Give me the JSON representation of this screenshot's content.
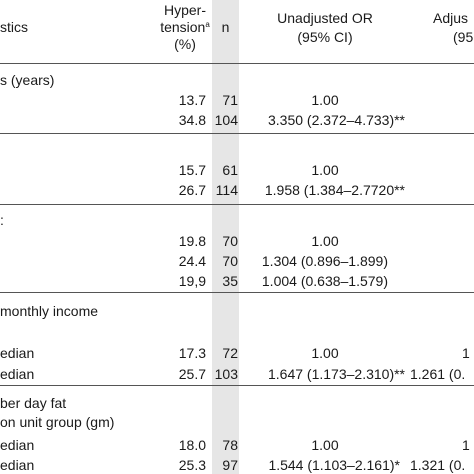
{
  "header": {
    "characteristics": "stics",
    "hypertension_line1": "Hyper-",
    "hypertension_line2": "tension",
    "hypertension_sup": "a",
    "hypertension_unit": "(%)",
    "n": "n",
    "unadjusted_line1": "Unadjusted OR",
    "unadjusted_line2": "(95% CI)",
    "adjusted_line1": "Adjus",
    "adjusted_line2": "(95"
  },
  "sections": [
    {
      "title": "s (years)",
      "rows": [
        {
          "label": "",
          "pct": "13.7",
          "n": "71",
          "uor": "1.00",
          "aor": ""
        },
        {
          "label": "",
          "pct": "34.8",
          "n": "104",
          "uor": "3.350 (2.372–4.733)**",
          "aor": ""
        }
      ]
    },
    {
      "title": "",
      "rows": [
        {
          "label": "",
          "pct": "15.7",
          "n": "61",
          "uor": "1.00",
          "aor": ""
        },
        {
          "label": "",
          "pct": "26.7",
          "n": "114",
          "uor": "1.958 (1.384–2.7720**",
          "aor": ""
        }
      ]
    },
    {
      "title": ":",
      "rows": [
        {
          "label": "",
          "pct": "19.8",
          "n": "70",
          "uor": "1.00",
          "aor": ""
        },
        {
          "label": "",
          "pct": "24.4",
          "n": "70",
          "uor": "1.304 (0.896–1.899)",
          "aor": ""
        },
        {
          "label": "",
          "pct": "19,9",
          "n": "35",
          "uor": "1.004 (0.638–1.579)",
          "aor": ""
        }
      ]
    },
    {
      "title": "monthly income",
      "rows": [
        {
          "label": "edian",
          "pct": "17.3",
          "n": "72",
          "uor": "1.00",
          "aor": "1"
        },
        {
          "label": "edian",
          "pct": "25.7",
          "n": "103",
          "uor": "1.647 (1.173–2.310)**",
          "aor": "1.261 (0."
        }
      ]
    },
    {
      "title": "ber day fat",
      "title2": "on unit group (gm)",
      "rows": [
        {
          "label": "edian",
          "pct": "18.0",
          "n": "78",
          "uor": "1.00",
          "aor": "1"
        },
        {
          "label": "edian",
          "pct": "25.3",
          "n": "97",
          "uor": "1.544 (1.103–2.161)*",
          "aor": "1.321 (0."
        }
      ]
    }
  ]
}
